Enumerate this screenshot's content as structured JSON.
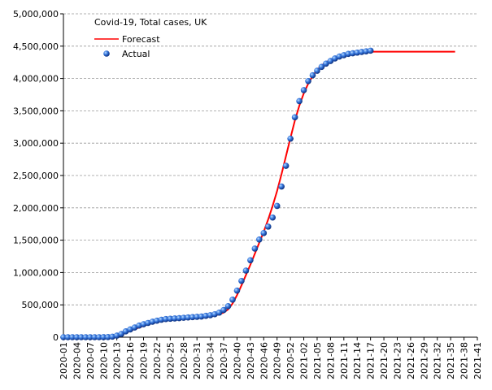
{
  "chart_data": {
    "type": "line",
    "title": "Covid-19, Total cases, UK",
    "categories": [
      "2020-01",
      null,
      null,
      "2020-04",
      null,
      null,
      "2020-07",
      null,
      null,
      "2020-10",
      null,
      null,
      "2020-13",
      null,
      null,
      "2020-16",
      null,
      null,
      "2020-19",
      null,
      null,
      "2020-22",
      null,
      null,
      "2020-25",
      null,
      null,
      "2020-28",
      null,
      null,
      "2020-31",
      null,
      null,
      "2020-34",
      null,
      null,
      "2020-37",
      null,
      null,
      "2020-40",
      null,
      null,
      "2020-43",
      null,
      null,
      "2020-46",
      null,
      null,
      "2020-49",
      null,
      null,
      "2020-52",
      null,
      null,
      "2021-02",
      null,
      null,
      "2021-05",
      null,
      null,
      "2021-08",
      null,
      null,
      "2021-11",
      null,
      null,
      "2021-14",
      null,
      null,
      "2021-17",
      null,
      null,
      "2021-20",
      null,
      null,
      "2021-23",
      null,
      null,
      "2021-26",
      null,
      null,
      "2021-29",
      null,
      null,
      "2021-32",
      null,
      null,
      "2021-35",
      null,
      null,
      "2021-38",
      null,
      null,
      "2021-41"
    ],
    "series": [
      {
        "name": "Forecast",
        "style": "line",
        "color": "#ff0000",
        "values": [
          0,
          0,
          0,
          0,
          0,
          0,
          0,
          0,
          0,
          0,
          0,
          5000,
          15000,
          40000,
          70000,
          100000,
          125000,
          150000,
          175000,
          200000,
          220000,
          235000,
          250000,
          260000,
          270000,
          280000,
          285000,
          290000,
          295000,
          300000,
          305000,
          310000,
          315000,
          325000,
          335000,
          355000,
          380000,
          430000,
          520000,
          650000,
          800000,
          960000,
          1120000,
          1290000,
          1460000,
          1630000,
          1820000,
          2030000,
          2260000,
          2520000,
          2800000,
          3080000,
          3350000,
          3580000,
          3770000,
          3920000,
          4040000,
          4130000,
          4200000,
          4250000,
          4290000,
          4320000,
          4350000,
          4370000,
          4385000,
          4395000,
          4405000,
          4410000,
          4415000,
          4415000,
          4415000,
          4415000,
          4415000,
          4415000,
          4415000,
          4415000,
          4415000,
          4415000,
          4415000,
          4415000,
          4415000,
          4415000,
          4415000,
          4415000,
          4415000,
          4415000,
          4415000,
          4415000,
          4415000,
          null,
          null,
          null,
          null,
          null
        ]
      },
      {
        "name": "Actual",
        "style": "points",
        "color": "#1f5fd0",
        "values": [
          0,
          0,
          0,
          0,
          0,
          0,
          0,
          0,
          0,
          300,
          2000,
          8000,
          25000,
          50000,
          90000,
          120000,
          150000,
          180000,
          200000,
          220000,
          240000,
          255000,
          270000,
          280000,
          285000,
          290000,
          295000,
          300000,
          305000,
          310000,
          315000,
          320000,
          330000,
          340000,
          355000,
          380000,
          420000,
          480000,
          580000,
          720000,
          870000,
          1030000,
          1190000,
          1370000,
          1510000,
          1610000,
          1710000,
          1850000,
          2030000,
          2330000,
          2650000,
          3070000,
          3400000,
          3650000,
          3820000,
          3960000,
          4050000,
          4120000,
          4180000,
          4230000,
          4270000,
          4310000,
          4340000,
          4360000,
          4380000,
          4390000,
          4400000,
          4410000,
          4420000,
          4430000,
          null,
          null,
          null,
          null,
          null,
          null,
          null,
          null,
          null,
          null,
          null,
          null,
          null,
          null,
          null,
          null,
          null,
          null,
          null,
          null,
          null,
          null,
          null,
          null
        ]
      }
    ],
    "ylim": [
      0,
      5000000
    ],
    "yticks": [
      0,
      {
        "value": 500000,
        "label": "500,000"
      },
      {
        "value": 1000000,
        "label": "1,000,000"
      },
      {
        "value": 1500000,
        "label": "1,500,000"
      },
      {
        "value": 2000000,
        "label": "2,000,000"
      },
      {
        "value": 2500000,
        "label": "2,500,000"
      },
      {
        "value": 3000000,
        "label": "3,000,000"
      },
      {
        "value": 3500000,
        "label": "3,500,000"
      },
      {
        "value": 4000000,
        "label": "4,000,000"
      },
      {
        "value": 4500000,
        "label": "4,500,000"
      },
      {
        "value": 5000000,
        "label": "5,000,000"
      }
    ],
    "grid": true
  }
}
